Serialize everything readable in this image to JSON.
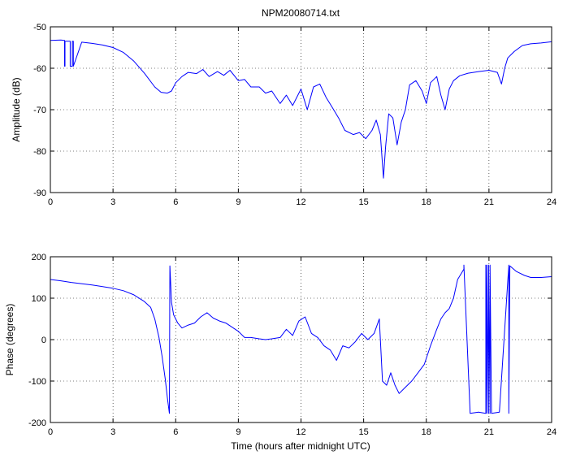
{
  "chart_data": [
    {
      "type": "line",
      "title": "NPM20080714.txt",
      "xlabel": "",
      "ylabel": "Amplitude (dB)",
      "xlim": [
        0,
        24
      ],
      "ylim": [
        -90,
        -50
      ],
      "xticks": [
        0,
        3,
        6,
        9,
        12,
        15,
        18,
        21,
        24
      ],
      "yticks": [
        -90,
        -80,
        -70,
        -60,
        -50
      ],
      "grid": true,
      "line_color": "#0000ff",
      "series": [
        {
          "x": [
            0,
            0.5,
            0.68,
            0.68,
            0.7,
            0.7,
            0.95,
            0.95,
            1.05,
            1.05,
            1.1,
            1.1,
            1.5,
            2,
            2.5,
            3,
            3.5,
            4,
            4.5,
            5,
            5.3,
            5.6,
            5.8,
            6,
            6.3,
            6.6,
            7,
            7.3,
            7.6,
            8,
            8.3,
            8.6,
            9,
            9.3,
            9.6,
            10,
            10.3,
            10.6,
            11,
            11.3,
            11.6,
            12,
            12.3,
            12.6,
            12.9,
            13.2,
            13.5,
            13.8,
            14.1,
            14.5,
            14.8,
            15.1,
            15.4,
            15.6,
            15.8,
            15.95,
            16.05,
            16.2,
            16.4,
            16.6,
            16.8,
            17.0,
            17.2,
            17.5,
            17.8,
            18.0,
            18.2,
            18.5,
            18.7,
            18.9,
            19.1,
            19.3,
            19.6,
            20,
            20.5,
            21,
            21.4,
            21.6,
            21.75,
            21.9,
            22.2,
            22.6,
            23,
            23.5,
            24
          ],
          "y": [
            -53.3,
            -53.2,
            -53.3,
            -59.5,
            -59.5,
            -53.5,
            -53.5,
            -59.5,
            -59.5,
            -53.5,
            -53.5,
            -59.5,
            -53.7,
            -54,
            -54.4,
            -55,
            -56.2,
            -58.3,
            -61.2,
            -64.5,
            -65.8,
            -66,
            -65.5,
            -63.5,
            -62,
            -61,
            -61.3,
            -60.3,
            -62,
            -60.8,
            -61.7,
            -60.5,
            -63,
            -62.7,
            -64.5,
            -64.5,
            -66,
            -65.5,
            -68.5,
            -66.5,
            -69,
            -65,
            -70,
            -64.5,
            -63.8,
            -67,
            -69.5,
            -72,
            -75,
            -76,
            -75.5,
            -77,
            -75,
            -72.5,
            -76,
            -86.5,
            -79,
            -71,
            -72,
            -78.5,
            -73,
            -70,
            -64,
            -63,
            -65.5,
            -68.5,
            -63.5,
            -62,
            -66.5,
            -70,
            -65,
            -63,
            -61.8,
            -61.2,
            -60.8,
            -60.5,
            -61,
            -63.8,
            -60,
            -57.5,
            -56,
            -54.5,
            -54.1,
            -53.9,
            -53.6
          ]
        }
      ]
    },
    {
      "type": "line",
      "title": "",
      "xlabel": "Time (hours after midnight UTC)",
      "ylabel": "Phase (degrees)",
      "xlim": [
        0,
        24
      ],
      "ylim": [
        -200,
        200
      ],
      "xticks": [
        0,
        3,
        6,
        9,
        12,
        15,
        18,
        21,
        24
      ],
      "yticks": [
        -200,
        -100,
        0,
        100,
        200
      ],
      "grid": true,
      "line_color": "#0000ff",
      "series": [
        {
          "x": [
            0,
            0.5,
            1,
            2,
            3,
            3.5,
            4,
            4.5,
            4.8,
            5.0,
            5.2,
            5.35,
            5.5,
            5.6,
            5.7,
            5.72,
            5.8,
            5.9,
            6.1,
            6.3,
            6.6,
            6.9,
            7.2,
            7.5,
            7.8,
            8.1,
            8.4,
            8.7,
            9,
            9.3,
            9.6,
            10,
            10.3,
            10.6,
            11,
            11.3,
            11.6,
            11.9,
            12.2,
            12.5,
            12.8,
            13.1,
            13.4,
            13.7,
            14,
            14.3,
            14.6,
            14.9,
            15.2,
            15.5,
            15.75,
            15.9,
            16.1,
            16.3,
            16.5,
            16.7,
            17.0,
            17.3,
            17.6,
            17.9,
            18.2,
            18.5,
            18.7,
            18.9,
            19.1,
            19.3,
            19.5,
            19.8,
            19.8,
            20.1,
            20.5,
            20.85,
            20.85,
            20.9,
            20.9,
            20.98,
            20.98,
            21.05,
            21.05,
            21.12,
            21.12,
            21.5,
            21.95,
            21.95,
            22.0,
            22.3,
            22.7,
            23,
            23.5,
            24
          ],
          "y": [
            145,
            142,
            138,
            132,
            124,
            118,
            108,
            92,
            78,
            50,
            5,
            -40,
            -95,
            -140,
            -178,
            178,
            90,
            60,
            40,
            28,
            35,
            40,
            55,
            65,
            52,
            45,
            40,
            30,
            20,
            5,
            5,
            2,
            0,
            2,
            5,
            25,
            10,
            45,
            55,
            15,
            5,
            -15,
            -25,
            -50,
            -15,
            -20,
            -5,
            15,
            0,
            15,
            50,
            -100,
            -110,
            -80,
            -110,
            -130,
            -115,
            -100,
            -80,
            -60,
            -15,
            25,
            50,
            65,
            75,
            100,
            145,
            170,
            180,
            -178,
            -175,
            -178,
            180,
            -178,
            180,
            -178,
            180,
            -178,
            180,
            -178,
            -178,
            -175,
            180,
            -178,
            178,
            165,
            155,
            150,
            150,
            152
          ]
        }
      ]
    }
  ]
}
